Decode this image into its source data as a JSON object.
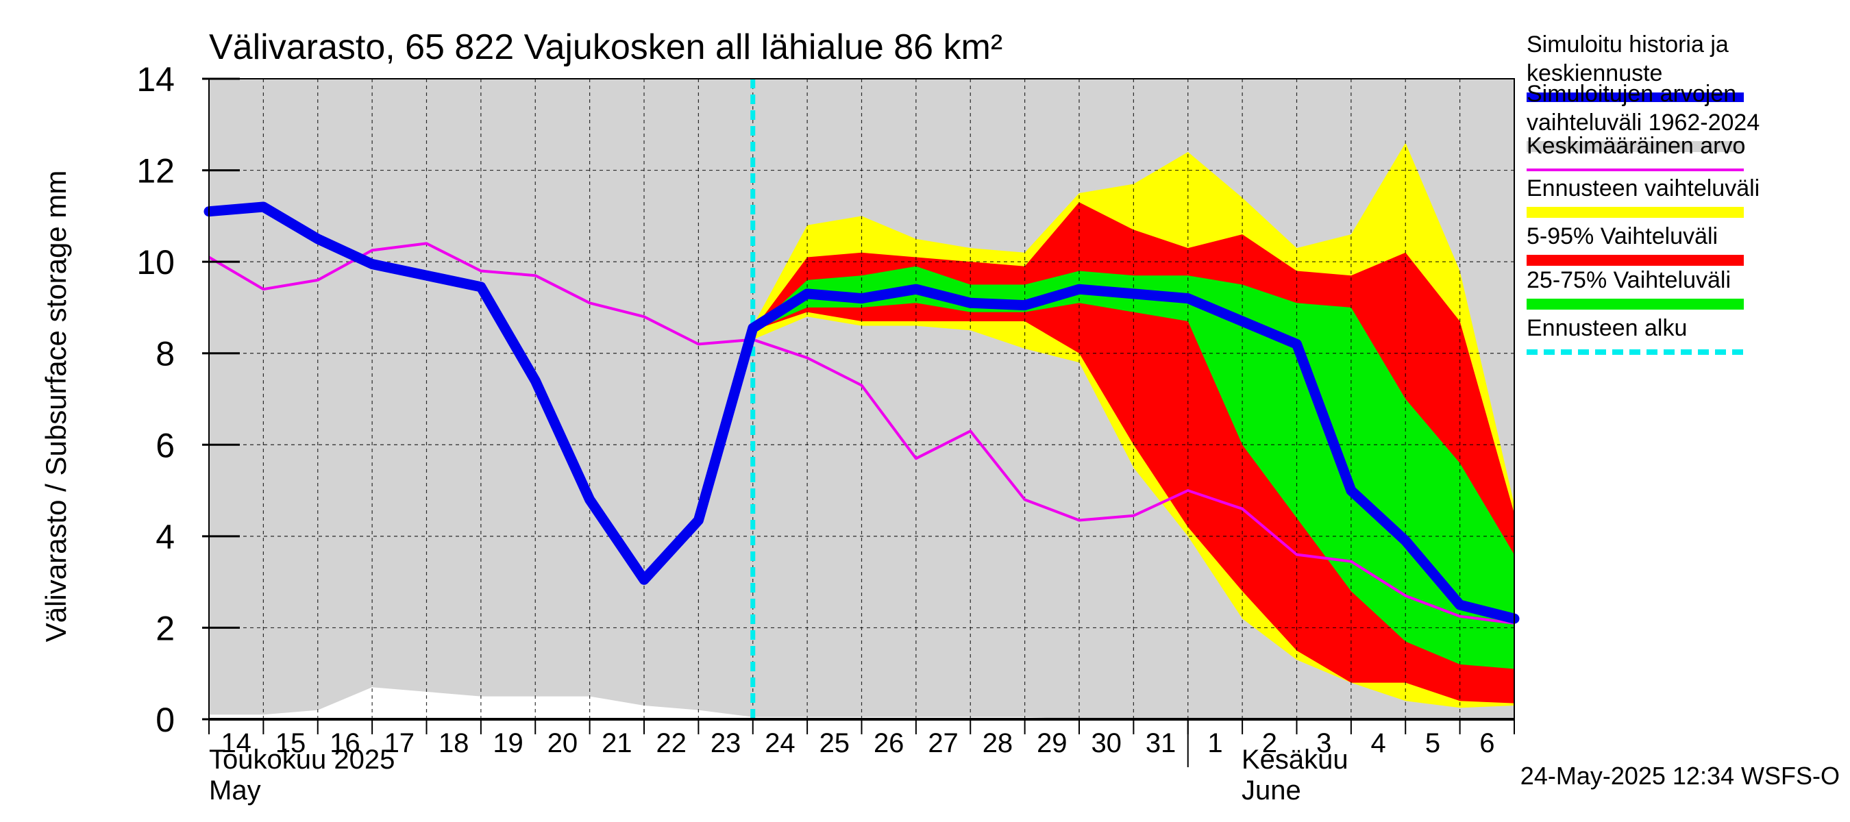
{
  "colors": {
    "history": "#0000ee",
    "range_1962_2024": "#d3d3d3",
    "mean": "#ee00ee",
    "forecast_range": "#ffff00",
    "p5_95": "#ff0000",
    "p25_75": "#00ee00",
    "forecast_start": "#00eeee"
  },
  "chart_data": {
    "type": "area",
    "title": "Välivarasto, 65 822 Vajukosken all lähialue 86 km²",
    "ylabel": "Välivarasto / Subsurface storage  mm",
    "ylim": [
      0,
      14
    ],
    "yticks": [
      0,
      2,
      4,
      6,
      8,
      10,
      12,
      14
    ],
    "x": [
      "2025-05-14",
      "2025-05-15",
      "2025-05-16",
      "2025-05-17",
      "2025-05-18",
      "2025-05-19",
      "2025-05-20",
      "2025-05-21",
      "2025-05-22",
      "2025-05-23",
      "2025-05-24",
      "2025-05-25",
      "2025-05-26",
      "2025-05-27",
      "2025-05-28",
      "2025-05-29",
      "2025-05-30",
      "2025-05-31",
      "2025-06-01",
      "2025-06-02",
      "2025-06-03",
      "2025-06-04",
      "2025-06-05",
      "2025-06-06",
      "2025-06-07"
    ],
    "x_tick_labels": [
      "14",
      "15",
      "16",
      "17",
      "18",
      "19",
      "20",
      "21",
      "22",
      "23",
      "24",
      "25",
      "26",
      "27",
      "28",
      "29",
      "30",
      "31",
      "1",
      "2",
      "3",
      "4",
      "5",
      "6"
    ],
    "month_labels": {
      "may_fi": "Toukokuu  2025",
      "may_en": "May",
      "june_fi": "Kesäkuu",
      "june_en": "June"
    },
    "forecast_start": "2025-05-24",
    "series": [
      {
        "name": "Simuloitujen arvojen vaihteluväli 1962-2024",
        "kind": "band",
        "lower": [
          0.1,
          0.1,
          0.2,
          0.7,
          0.6,
          0.5,
          0.5,
          0.5,
          0.3,
          0.2,
          0.05,
          0.05,
          0.05,
          0.05,
          0.05,
          0.05,
          0.0,
          0.0,
          0.0,
          0.0,
          0.0,
          0.0,
          0.0,
          0.0,
          0.0
        ],
        "upper": [
          14,
          14,
          14,
          14,
          14,
          14,
          14,
          14,
          14,
          14,
          14,
          14,
          14,
          14,
          14,
          14,
          14,
          14,
          14,
          14,
          14,
          14,
          14,
          14,
          14
        ]
      },
      {
        "name": "Ennusteen vaihteluväli",
        "kind": "band",
        "x_start": 10,
        "lower": [
          8.3,
          8.8,
          8.6,
          8.6,
          8.5,
          8.1,
          7.8,
          5.5,
          4.0,
          2.2,
          1.3,
          0.8,
          0.4,
          0.25,
          0.3
        ],
        "upper": [
          8.6,
          10.8,
          11.0,
          10.5,
          10.3,
          10.2,
          11.5,
          11.7,
          12.4,
          11.4,
          10.3,
          10.6,
          12.6,
          9.8,
          4.7
        ]
      },
      {
        "name": "5-95% Vaihteluväli",
        "kind": "band",
        "x_start": 10,
        "lower": [
          8.5,
          8.9,
          8.7,
          8.7,
          8.7,
          8.7,
          8.0,
          6.0,
          4.2,
          2.8,
          1.5,
          0.8,
          0.8,
          0.4,
          0.35
        ],
        "upper": [
          8.5,
          10.1,
          10.2,
          10.1,
          10.0,
          9.9,
          11.3,
          10.7,
          10.3,
          10.6,
          9.8,
          9.7,
          10.2,
          8.7,
          4.5
        ]
      },
      {
        "name": "25-75% Vaihteluväli",
        "kind": "band",
        "x_start": 10,
        "lower": [
          8.5,
          9.0,
          9.0,
          9.1,
          8.9,
          8.9,
          9.1,
          8.9,
          8.7,
          6.0,
          4.4,
          2.8,
          1.7,
          1.2,
          1.1
        ],
        "upper": [
          8.5,
          9.6,
          9.7,
          9.9,
          9.5,
          9.5,
          9.8,
          9.7,
          9.7,
          9.5,
          9.1,
          9.0,
          7.0,
          5.6,
          3.6
        ]
      },
      {
        "name": "Keskimääräinen arvo",
        "kind": "line",
        "values": [
          10.1,
          9.4,
          9.6,
          10.25,
          10.4,
          9.8,
          9.7,
          9.1,
          8.8,
          8.2,
          8.3,
          7.9,
          7.3,
          5.7,
          6.3,
          4.8,
          4.35,
          4.45,
          5.0,
          4.6,
          3.6,
          3.45,
          2.7,
          2.25,
          2.1
        ]
      },
      {
        "name": "Simuloitu historia ja keskiennuste",
        "kind": "line",
        "values": [
          11.1,
          11.2,
          10.5,
          9.95,
          9.7,
          9.45,
          7.4,
          4.8,
          3.05,
          4.35,
          8.55,
          9.3,
          9.2,
          9.4,
          9.1,
          9.05,
          9.4,
          9.3,
          9.2,
          8.7,
          8.2,
          5.0,
          3.9,
          2.5,
          2.2
        ]
      }
    ],
    "legend": [
      {
        "label": "Simuloitu historia ja keskiennuste",
        "color_key": "history",
        "style": "thick"
      },
      {
        "label": "Simuloitujen arvojen vaihteluväli 1962-2024",
        "color_key": "range_1962_2024",
        "style": "band"
      },
      {
        "label": "Keskimääräinen arvo",
        "color_key": "mean",
        "style": "thin"
      },
      {
        "label": "Ennusteen vaihteluväli",
        "color_key": "forecast_range",
        "style": "band"
      },
      {
        "label": "5-95% Vaihteluväli",
        "color_key": "p5_95",
        "style": "band"
      },
      {
        "label": "25-75% Vaihteluväli",
        "color_key": "p25_75",
        "style": "band"
      },
      {
        "label": "Ennusteen alku",
        "color_key": "forecast_start",
        "style": "dashed"
      }
    ],
    "legend_position": "right",
    "grid": true,
    "footer": "24-May-2025 12:34 WSFS-O"
  }
}
